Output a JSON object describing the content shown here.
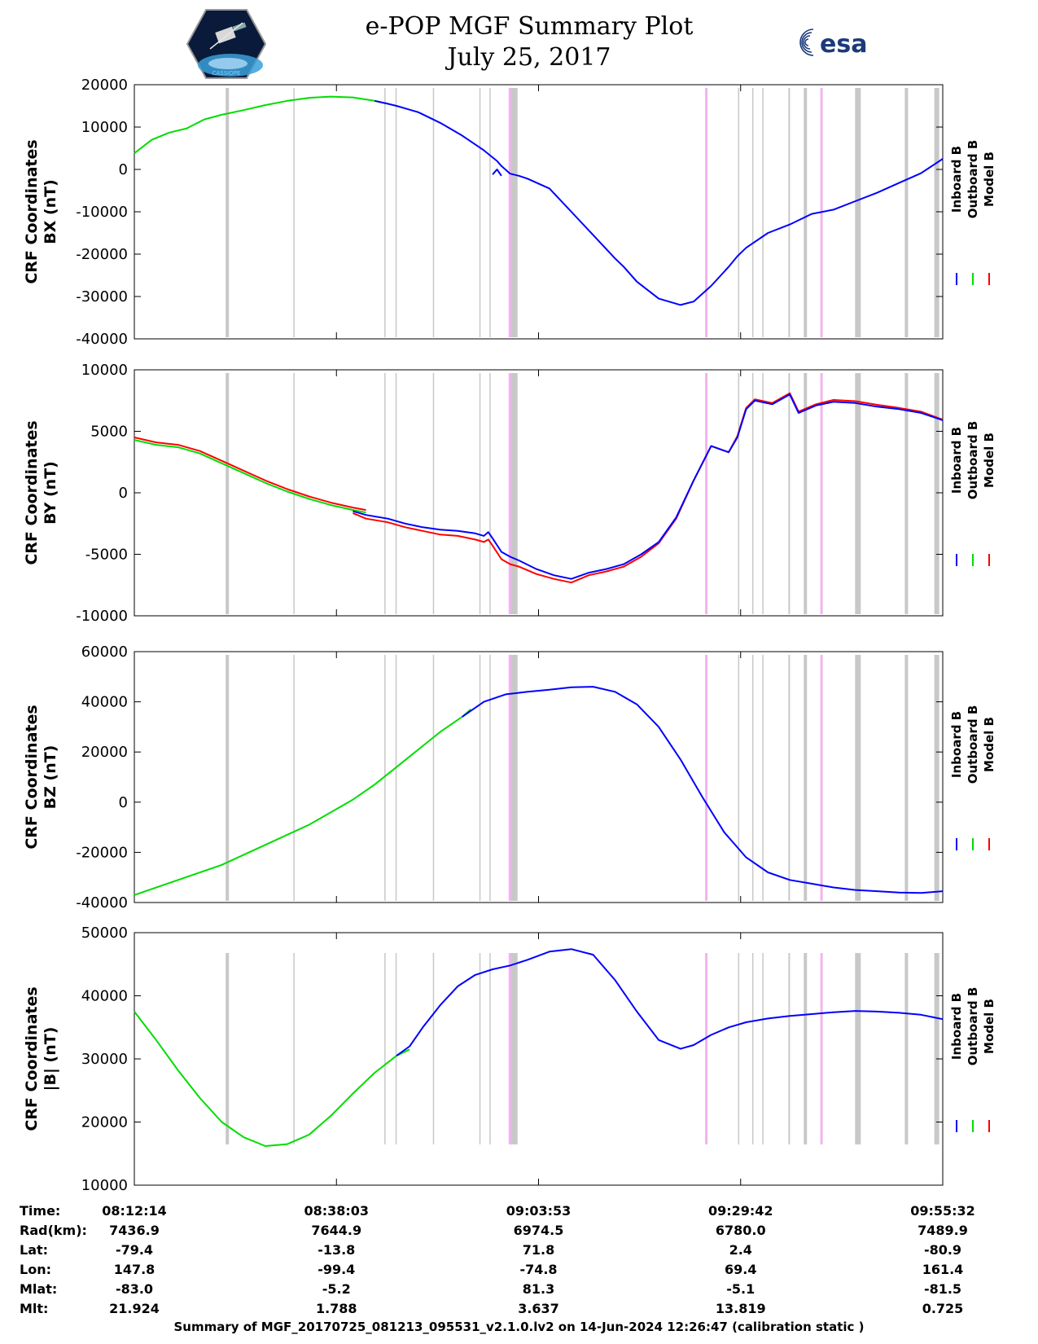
{
  "title_line1": "e-POP MGF Summary Plot",
  "title_line2": "July 25, 2017",
  "logo_left_name": "CASSIOPE",
  "logo_right_text": "esa",
  "footer": "Summary of MGF_20170725_081213_095531_v2.1.0.lv2 on 14-Jun-2024 12:26:47 (calibration static )",
  "colors": {
    "inboard": "#0000ff",
    "outboard": "#00dd00",
    "model": "#ff0000",
    "gap_gray": "#c8c8c8",
    "gap_pink": "#f0b4f0"
  },
  "legend": [
    "Inboard B",
    "Outboard B",
    "Model B"
  ],
  "info_table": {
    "labels": [
      "Time:",
      "Rad(km):",
      "Lat:",
      "Lon:",
      "Mlat:",
      "Mlt:"
    ],
    "columns": [
      [
        "08:12:14",
        "7436.9",
        "-79.4",
        "147.8",
        "-83.0",
        "21.924"
      ],
      [
        "08:38:03",
        "7644.9",
        "-13.8",
        "-99.4",
        "-5.2",
        "1.788"
      ],
      [
        "09:03:53",
        "6974.5",
        "71.8",
        "-74.8",
        "81.3",
        "3.637"
      ],
      [
        "09:29:42",
        "6780.0",
        "2.4",
        "69.4",
        "-5.1",
        "13.819"
      ],
      [
        "09:55:32",
        "7489.9",
        "-80.9",
        "161.4",
        "-81.5",
        "0.725"
      ]
    ]
  },
  "chart_data": [
    {
      "type": "line",
      "ylabel_line1": "CRF Coordinates",
      "ylabel_line2": "BX (nT)",
      "x_range": [
        0,
        103.3
      ],
      "ylim": [
        -40000,
        20000
      ],
      "yticks": [
        "20000",
        "10000",
        "0",
        "-10000",
        "-20000",
        "-30000",
        "-40000"
      ],
      "ytick_values": [
        20000,
        10000,
        0,
        -10000,
        -20000,
        -30000,
        -40000
      ],
      "outboard_x": [
        0,
        4,
        8,
        12,
        16,
        20,
        25,
        30,
        35,
        40,
        45,
        50,
        55,
        58
      ],
      "outboard_y": [
        3800,
        7000,
        8700,
        9700,
        11800,
        12900,
        14000,
        15200,
        16200,
        16900,
        17200,
        17000,
        16200,
        15500
      ],
      "inboard_x": [
        55,
        58,
        60,
        65,
        70,
        75,
        80,
        83,
        84,
        86,
        88,
        90,
        95,
        100,
        105,
        110,
        112,
        115,
        120,
        125,
        128,
        132,
        136,
        138,
        140,
        145,
        150,
        155,
        160,
        165,
        170,
        175,
        180,
        185
      ],
      "inboard_y": [
        16200,
        15500,
        15000,
        13500,
        11000,
        8000,
        4500,
        2000,
        800,
        -1000,
        -1500,
        -2200,
        -4500,
        -10000,
        -15500,
        -21000,
        -23000,
        -26500,
        -30500,
        -32000,
        -31200,
        -27500,
        -23000,
        -20500,
        -18500,
        -15000,
        -13000,
        -10500,
        -9500,
        -7500,
        -5500,
        -3200,
        -900,
        2500
      ],
      "spike_x": [
        82,
        83,
        84
      ],
      "spike_y": [
        -1200,
        0,
        -1500
      ]
    },
    {
      "type": "line",
      "ylabel_line1": "CRF Coordinates",
      "ylabel_line2": "BY (nT)",
      "ylim": [
        -10000,
        10000
      ],
      "yticks": [
        "10000",
        "5000",
        "0",
        "-5000",
        "-10000"
      ],
      "ytick_values": [
        10000,
        5000,
        0,
        -5000,
        -10000
      ],
      "outboard_x": [
        0,
        5,
        10,
        15,
        20,
        25,
        30,
        35,
        40,
        45,
        50,
        53
      ],
      "outboard_y": [
        4300,
        3900,
        3700,
        3200,
        2400,
        1600,
        800,
        100,
        -500,
        -1000,
        -1400,
        -1600
      ],
      "inboard_x": [
        50,
        53,
        58,
        62,
        66,
        70,
        74,
        78,
        80,
        81,
        82,
        84,
        86,
        88,
        92,
        96,
        100,
        104,
        108,
        112,
        116,
        120,
        124,
        128,
        132,
        136,
        138,
        140,
        142,
        146,
        150,
        152,
        156,
        160,
        165,
        170,
        175,
        180,
        185
      ],
      "inboard_y": [
        -1500,
        -1800,
        -2100,
        -2500,
        -2800,
        -3000,
        -3100,
        -3300,
        -3500,
        -3200,
        -3700,
        -4800,
        -5200,
        -5500,
        -6200,
        -6700,
        -7000,
        -6500,
        -6200,
        -5800,
        -5000,
        -4000,
        -2000,
        1000,
        3800,
        3300,
        4500,
        6800,
        7500,
        7200,
        8000,
        6500,
        7100,
        7400,
        7300,
        7000,
        6800,
        6500,
        5900
      ],
      "model_offset": [
        -150,
        -300,
        -300,
        -300,
        -300,
        -400,
        -400,
        -500,
        -500,
        -600,
        -600,
        -600,
        -600,
        -500,
        -400,
        -300,
        -300,
        -200,
        -200,
        -200,
        -200,
        -100,
        -100,
        0,
        0,
        0,
        100,
        100,
        100,
        100,
        100,
        100,
        100,
        150,
        150,
        150,
        100,
        100,
        50
      ]
    },
    {
      "type": "line",
      "ylabel_line1": "CRF Coordinates",
      "ylabel_line2": "BZ (nT)",
      "ylim": [
        -40000,
        60000
      ],
      "yticks": [
        "60000",
        "40000",
        "20000",
        "0",
        "-20000",
        "-40000"
      ],
      "ytick_values": [
        60000,
        40000,
        20000,
        0,
        -20000,
        -40000
      ],
      "outboard_x": [
        0,
        10,
        20,
        30,
        40,
        50,
        55,
        60,
        65,
        70,
        75,
        77
      ],
      "outboard_y": [
        -37000,
        -31000,
        -25000,
        -17000,
        -9000,
        1000,
        7000,
        14000,
        21000,
        28000,
        34000,
        37000
      ],
      "inboard_x": [
        75,
        80,
        85,
        90,
        95,
        100,
        105,
        110,
        115,
        120,
        125,
        130,
        135,
        140,
        145,
        150,
        155,
        160,
        165,
        170,
        175,
        180,
        185
      ],
      "inboard_y": [
        34000,
        40000,
        43000,
        44000,
        44800,
        45800,
        46000,
        44000,
        39000,
        30000,
        17000,
        2000,
        -12000,
        -22000,
        -28000,
        -31000,
        -32500,
        -34000,
        -35000,
        -35500,
        -36000,
        -36200,
        -35500
      ]
    },
    {
      "type": "line",
      "ylabel_line1": "CRF Coordinates",
      "ylabel_line2": "|B| (nT)",
      "ylim": [
        10000,
        50000
      ],
      "yticks": [
        "50000",
        "40000",
        "30000",
        "20000",
        "10000"
      ],
      "ytick_values": [
        50000,
        40000,
        30000,
        20000,
        10000
      ],
      "outboard_x": [
        0,
        5,
        10,
        15,
        20,
        25,
        30,
        35,
        40,
        45,
        50,
        55,
        60,
        63
      ],
      "outboard_y": [
        37500,
        33000,
        28200,
        23800,
        20000,
        17600,
        16200,
        16500,
        18000,
        21000,
        24500,
        27800,
        30500,
        31500
      ],
      "inboard_x": [
        60,
        63,
        66,
        70,
        74,
        78,
        82,
        86,
        90,
        95,
        100,
        105,
        110,
        115,
        120,
        125,
        128,
        132,
        136,
        140,
        145,
        150,
        155,
        160,
        165,
        170,
        175,
        180,
        185
      ],
      "inboard_y": [
        30500,
        32000,
        35000,
        38500,
        41500,
        43300,
        44200,
        44800,
        45700,
        47000,
        47400,
        46500,
        42500,
        37500,
        33000,
        31600,
        32200,
        33800,
        35000,
        35800,
        36400,
        36800,
        37100,
        37400,
        37600,
        37500,
        37300,
        37000,
        36300
      ]
    }
  ]
}
